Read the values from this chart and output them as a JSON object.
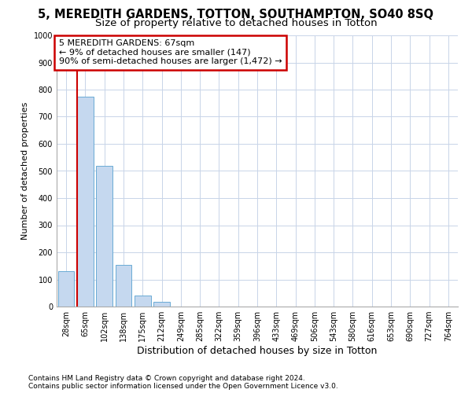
{
  "title": "5, MEREDITH GARDENS, TOTTON, SOUTHAMPTON, SO40 8SQ",
  "subtitle": "Size of property relative to detached houses in Totton",
  "xlabel": "Distribution of detached houses by size in Totton",
  "ylabel": "Number of detached properties",
  "bar_labels": [
    "28sqm",
    "65sqm",
    "102sqm",
    "138sqm",
    "175sqm",
    "212sqm",
    "249sqm",
    "285sqm",
    "322sqm",
    "359sqm",
    "396sqm",
    "433sqm",
    "469sqm",
    "506sqm",
    "543sqm",
    "580sqm",
    "616sqm",
    "653sqm",
    "690sqm",
    "727sqm",
    "764sqm"
  ],
  "bar_values": [
    130,
    775,
    520,
    155,
    40,
    18,
    0,
    0,
    0,
    0,
    0,
    0,
    0,
    0,
    0,
    0,
    0,
    0,
    0,
    0,
    0
  ],
  "bar_color": "#c5d8ef",
  "bar_edge_color": "#6aaad4",
  "vline_color": "#cc0000",
  "annotation_text": "5 MEREDITH GARDENS: 67sqm\n← 9% of detached houses are smaller (147)\n90% of semi-detached houses are larger (1,472) →",
  "annotation_box_color": "#cc0000",
  "ylim": [
    0,
    1000
  ],
  "yticks": [
    0,
    100,
    200,
    300,
    400,
    500,
    600,
    700,
    800,
    900,
    1000
  ],
  "footnote": "Contains HM Land Registry data © Crown copyright and database right 2024.\nContains public sector information licensed under the Open Government Licence v3.0.",
  "bg_color": "#ffffff",
  "grid_color": "#c8d4e8",
  "title_fontsize": 10.5,
  "subtitle_fontsize": 9.5,
  "xlabel_fontsize": 9,
  "ylabel_fontsize": 8,
  "tick_fontsize": 7,
  "annotation_fontsize": 8,
  "footnote_fontsize": 6.5
}
